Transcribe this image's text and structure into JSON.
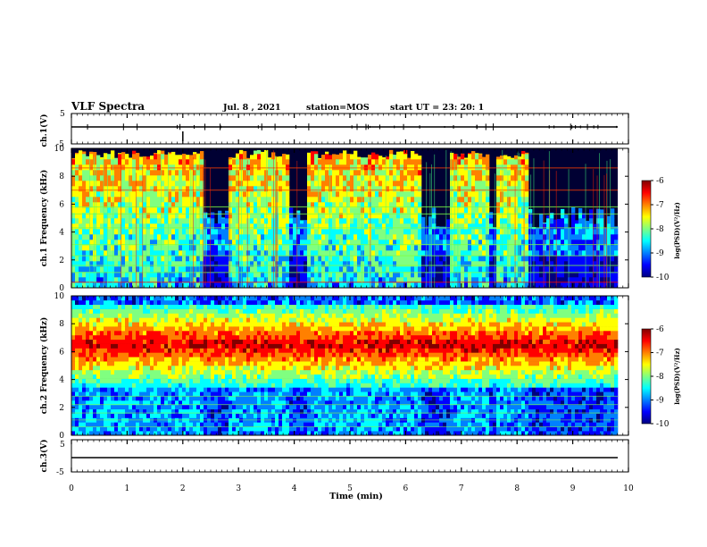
{
  "header": {
    "title": "VLF Spectra",
    "date": "Jul. 8 , 2021",
    "station": "station=MOS",
    "start": "start UT = 23: 20: 1"
  },
  "chart_data": [
    {
      "type": "line",
      "panel": "ch1-waveform",
      "ylabel": "ch.1(V)",
      "ylim": [
        -5,
        5
      ],
      "yticks": [
        "5",
        "-5"
      ],
      "xlim": [
        0,
        10
      ],
      "series": [
        {
          "values": [
            0,
            0
          ]
        }
      ]
    },
    {
      "type": "heatmap",
      "panel": "ch1-spectrogram",
      "ylabel": "ch.1 Frequency (kHz)",
      "ylim": [
        0,
        10
      ],
      "yticks": [
        "0",
        "2",
        "4",
        "6",
        "8",
        "10"
      ],
      "xlim": [
        0,
        10
      ],
      "colorbar": {
        "label": "log(PSD)(V²/Hz)",
        "ticks": [
          "-6",
          "-7",
          "-8",
          "-9",
          "-10"
        ],
        "range": [
          -10,
          -6
        ]
      },
      "dark_gaps_min": [
        [
          2.4,
          2.8
        ],
        [
          3.9,
          4.2
        ],
        [
          6.3,
          6.8
        ],
        [
          7.5,
          7.6
        ],
        [
          8.2,
          9.8
        ]
      ],
      "bands_kHz": [
        0.4,
        1.1,
        1.6,
        2.3,
        3.1,
        4.3,
        5.3,
        5.8,
        7.0,
        8.6
      ]
    },
    {
      "type": "heatmap",
      "panel": "ch2-spectrogram",
      "ylabel": "ch.2 Frequency (kHz)",
      "ylim": [
        0,
        10
      ],
      "yticks": [
        "0",
        "2",
        "4",
        "6",
        "8",
        "10"
      ],
      "xlim": [
        0,
        10
      ],
      "colorbar": {
        "label": "log(PSD)(V²/Hz)",
        "ticks": [
          "-6",
          "-7",
          "-8",
          "-9",
          "-10"
        ],
        "range": [
          -10,
          -6
        ]
      },
      "peak_band_kHz": [
        4.5,
        8.5
      ]
    },
    {
      "type": "line",
      "panel": "ch3-waveform",
      "ylabel": "ch.3(V)",
      "ylim": [
        -5,
        5
      ],
      "yticks": [
        "5",
        "-5"
      ],
      "xlim": [
        0,
        10
      ],
      "xlabel": "Time (min)",
      "xticks": [
        "0",
        "1",
        "2",
        "3",
        "4",
        "5",
        "6",
        "7",
        "8",
        "9",
        "10"
      ],
      "series": [
        {
          "values": [
            0,
            0
          ]
        }
      ]
    }
  ],
  "colors": {
    "jet": [
      "#000080",
      "#0000ff",
      "#0080ff",
      "#00ffff",
      "#80ff80",
      "#ffff00",
      "#ff8000",
      "#ff0000",
      "#800000"
    ],
    "background": "#000033"
  }
}
